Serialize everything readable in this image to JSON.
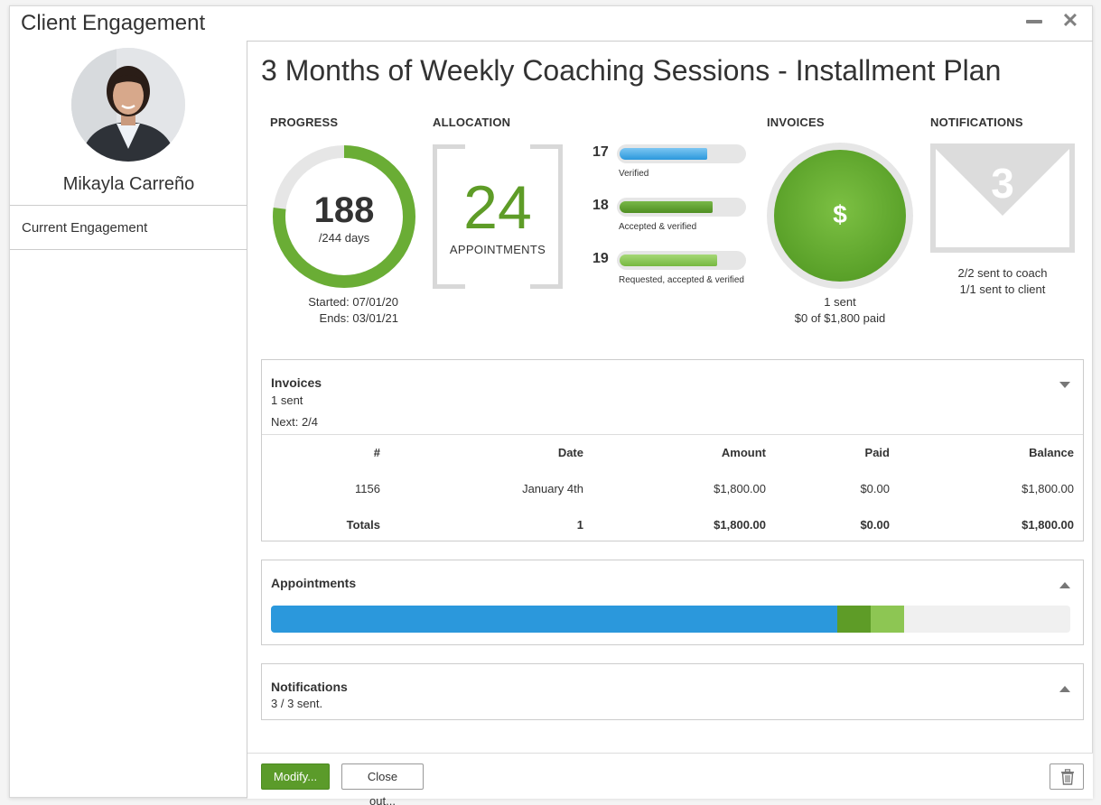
{
  "window": {
    "title": "Client Engagement"
  },
  "sidebar": {
    "profile_name": "Mikayla Carreño",
    "items": [
      {
        "label": "Current Engagement"
      }
    ]
  },
  "main": {
    "title": "3 Months of Weekly Coaching Sessions - Installment Plan",
    "progress": {
      "label": "PROGRESS",
      "days_done": "188",
      "days_total_text": "/244 days",
      "fraction": 0.77,
      "started": "Started: 07/01/20",
      "ends": "Ends: 03/01/21"
    },
    "allocation": {
      "label": "ALLOCATION",
      "count": "24",
      "unit": "APPOINTMENTS",
      "bars": [
        {
          "num": "17",
          "caption": "Verified",
          "fraction": 0.71,
          "color": "#3aa3e3"
        },
        {
          "num": "18",
          "caption": "Accepted & verified",
          "fraction": 0.75,
          "color": "#5e9c27"
        },
        {
          "num": "19",
          "caption": "Requested, accepted & verified",
          "fraction": 0.79,
          "color": "#86c453"
        }
      ]
    },
    "invoices": {
      "label": "INVOICES",
      "symbol": "$",
      "sent": "1 sent",
      "paid": "$0 of $1,800 paid"
    },
    "notifications": {
      "label": "NOTIFICATIONS",
      "count": "3",
      "coach": "2/2 sent to coach",
      "client": "1/1 sent to client"
    }
  },
  "invoices_panel": {
    "title": "Invoices",
    "sent": "1 sent",
    "next": "Next: 2/4",
    "columns": [
      "#",
      "Date",
      "Amount",
      "Paid",
      "Balance"
    ],
    "rows": [
      [
        "1156",
        "January 4th",
        "$1,800.00",
        "$0.00",
        "$1,800.00"
      ]
    ],
    "totals": [
      "Totals",
      "1",
      "$1,800.00",
      "$0.00",
      "$1,800.00"
    ]
  },
  "appointments_panel": {
    "title": "Appointments",
    "segments": [
      {
        "fraction": 0.708,
        "color": "#2b98dc"
      },
      {
        "fraction": 0.042,
        "color": "#5e9c27"
      },
      {
        "fraction": 0.042,
        "color": "#8dc653"
      }
    ]
  },
  "notifications_panel": {
    "title": "Notifications",
    "sent": "3 / 3 sent."
  },
  "footer": {
    "modify": "Modify...",
    "close_out": "Close out..."
  }
}
